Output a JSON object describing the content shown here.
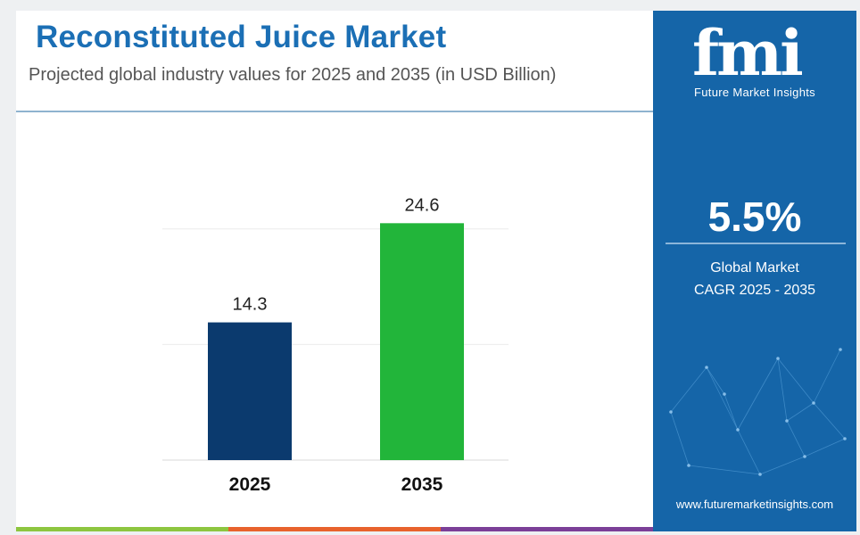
{
  "header": {
    "title": "Reconstituted Juice Market",
    "subtitle": "Projected global industry values for 2025 and 2035 (in USD Billion)"
  },
  "chart_data": {
    "type": "bar",
    "title": "Reconstituted Juice Market",
    "subtitle": "Projected global industry values for 2025 and 2035 (in USD Billion)",
    "categories": [
      "2025",
      "2035"
    ],
    "values": [
      14.3,
      24.6
    ],
    "value_labels": [
      "14.3",
      "24.6"
    ],
    "colors": [
      "#0b3a6e",
      "#22b53a"
    ],
    "xlabel": "",
    "ylabel": "",
    "ylim": [
      0,
      30
    ],
    "grid": true,
    "legend": "none"
  },
  "sidebar": {
    "logo_text": "fmi",
    "logo_subtitle": "Future Market Insights",
    "cagr_value": "5.5%",
    "cagr_label_line1": "Global Market",
    "cagr_label_line2": "CAGR 2025 - 2035",
    "website": "www.futuremarketinsights.com",
    "background_color": "#1565a8"
  },
  "footer": {
    "stripe_colors": [
      "#8dc63f",
      "#e8622c",
      "#7b3f98"
    ]
  }
}
